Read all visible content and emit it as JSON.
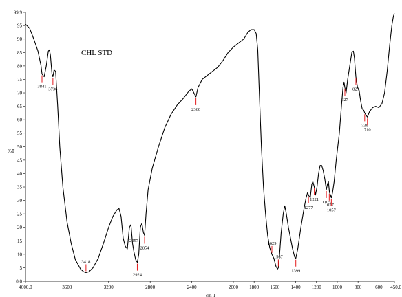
{
  "chart_data": {
    "type": "line",
    "ylabel": "%T",
    "xlabel": "cm-1",
    "annotation": "CHL  STD",
    "xlim": [
      4000.0,
      450.0
    ],
    "ylim": [
      0.0,
      99.9
    ],
    "x_ticks": [
      {
        "value": 4000,
        "label": "4000.0"
      },
      {
        "value": 3600,
        "label": "3600"
      },
      {
        "value": 3200,
        "label": "3200"
      },
      {
        "value": 2800,
        "label": "2800"
      },
      {
        "value": 2400,
        "label": "2400"
      },
      {
        "value": 2000,
        "label": "2000"
      },
      {
        "value": 1800,
        "label": "1800"
      },
      {
        "value": 1600,
        "label": "1600"
      },
      {
        "value": 1400,
        "label": "1400"
      },
      {
        "value": 1200,
        "label": "1200"
      },
      {
        "value": 1000,
        "label": "1000"
      },
      {
        "value": 800,
        "label": "800"
      },
      {
        "value": 600,
        "label": "600"
      },
      {
        "value": 450,
        "label": "450.0"
      }
    ],
    "y_ticks": [
      {
        "value": 0,
        "label": "0.0"
      },
      {
        "value": 5,
        "label": "5"
      },
      {
        "value": 10,
        "label": "10"
      },
      {
        "value": 15,
        "label": "15"
      },
      {
        "value": 20,
        "label": "20"
      },
      {
        "value": 25,
        "label": "25"
      },
      {
        "value": 30,
        "label": "30"
      },
      {
        "value": 35,
        "label": "35"
      },
      {
        "value": 40,
        "label": "40"
      },
      {
        "value": 45,
        "label": "45"
      },
      {
        "value": 50,
        "label": "50"
      },
      {
        "value": 55,
        "label": "55"
      },
      {
        "value": 60,
        "label": "60"
      },
      {
        "value": 65,
        "label": "65"
      },
      {
        "value": 70,
        "label": "70"
      },
      {
        "value": 75,
        "label": "75"
      },
      {
        "value": 80,
        "label": "80"
      },
      {
        "value": 85,
        "label": "85"
      },
      {
        "value": 90,
        "label": "90"
      },
      {
        "value": 95,
        "label": "95"
      },
      {
        "value": 99.9,
        "label": "99.9"
      }
    ],
    "series": [
      {
        "color": "#000000",
        "points": [
          [
            4000,
            95.5
          ],
          [
            3960,
            94.0
          ],
          [
            3920,
            90.0
          ],
          [
            3880,
            85.5
          ],
          [
            3850,
            80.0
          ],
          [
            3841,
            77.0
          ],
          [
            3820,
            76.0
          ],
          [
            3800,
            80.0
          ],
          [
            3780,
            85.5
          ],
          [
            3770,
            86.0
          ],
          [
            3760,
            84.0
          ],
          [
            3745,
            77.0
          ],
          [
            3736,
            76.0
          ],
          [
            3725,
            78.5
          ],
          [
            3710,
            78.0
          ],
          [
            3690,
            65.0
          ],
          [
            3670,
            50.0
          ],
          [
            3640,
            35.0
          ],
          [
            3600,
            22.0
          ],
          [
            3560,
            14.0
          ],
          [
            3520,
            8.0
          ],
          [
            3470,
            4.5
          ],
          [
            3440,
            3.5
          ],
          [
            3418,
            3.2
          ],
          [
            3390,
            3.5
          ],
          [
            3350,
            5.0
          ],
          [
            3300,
            8.5
          ],
          [
            3250,
            14.0
          ],
          [
            3200,
            20.0
          ],
          [
            3160,
            24.0
          ],
          [
            3120,
            26.5
          ],
          [
            3100,
            27.0
          ],
          [
            3080,
            24.0
          ],
          [
            3060,
            16.0
          ],
          [
            3040,
            13.0
          ],
          [
            3020,
            12.0
          ],
          [
            3000,
            20.0
          ],
          [
            2985,
            21.0
          ],
          [
            2970,
            14.0
          ],
          [
            2957,
            11.0
          ],
          [
            2940,
            8.0
          ],
          [
            2924,
            7.0
          ],
          [
            2910,
            10.0
          ],
          [
            2895,
            20.0
          ],
          [
            2880,
            21.5
          ],
          [
            2865,
            18.0
          ],
          [
            2854,
            17.0
          ],
          [
            2840,
            25.0
          ],
          [
            2820,
            34.0
          ],
          [
            2780,
            42.0
          ],
          [
            2720,
            50.0
          ],
          [
            2660,
            57.0
          ],
          [
            2600,
            62.0
          ],
          [
            2540,
            65.5
          ],
          [
            2480,
            68.0
          ],
          [
            2430,
            70.5
          ],
          [
            2400,
            71.5
          ],
          [
            2380,
            70.0
          ],
          [
            2360,
            68.5
          ],
          [
            2340,
            72.0
          ],
          [
            2300,
            75.0
          ],
          [
            2250,
            76.5
          ],
          [
            2200,
            78.0
          ],
          [
            2150,
            79.5
          ],
          [
            2100,
            82.0
          ],
          [
            2050,
            85.0
          ],
          [
            2000,
            87.0
          ],
          [
            1950,
            88.5
          ],
          [
            1900,
            90.0
          ],
          [
            1860,
            92.5
          ],
          [
            1830,
            93.5
          ],
          [
            1800,
            93.5
          ],
          [
            1780,
            92.0
          ],
          [
            1765,
            86.0
          ],
          [
            1750,
            70.0
          ],
          [
            1730,
            50.0
          ],
          [
            1710,
            35.0
          ],
          [
            1690,
            25.0
          ],
          [
            1670,
            17.0
          ],
          [
            1650,
            12.5
          ],
          [
            1629,
            10.0
          ],
          [
            1610,
            8.5
          ],
          [
            1590,
            5.5
          ],
          [
            1575,
            4.5
          ],
          [
            1567,
            5.0
          ],
          [
            1555,
            10.0
          ],
          [
            1540,
            18.0
          ],
          [
            1520,
            25.0
          ],
          [
            1505,
            28.0
          ],
          [
            1490,
            25.0
          ],
          [
            1470,
            20.0
          ],
          [
            1450,
            16.0
          ],
          [
            1430,
            12.0
          ],
          [
            1410,
            9.0
          ],
          [
            1399,
            8.5
          ],
          [
            1380,
            12.0
          ],
          [
            1350,
            20.0
          ],
          [
            1320,
            27.0
          ],
          [
            1300,
            31.0
          ],
          [
            1285,
            33.0
          ],
          [
            1277,
            32.0
          ],
          [
            1260,
            31.0
          ],
          [
            1245,
            36.0
          ],
          [
            1235,
            37.0
          ],
          [
            1221,
            35.0
          ],
          [
            1210,
            32.0
          ],
          [
            1195,
            35.0
          ],
          [
            1180,
            40.0
          ],
          [
            1165,
            43.0
          ],
          [
            1150,
            43.0
          ],
          [
            1135,
            41.0
          ],
          [
            1120,
            38.0
          ],
          [
            1105,
            34.0
          ],
          [
            1095,
            36.0
          ],
          [
            1085,
            37.0
          ],
          [
            1075,
            33.0
          ],
          [
            1065,
            32.0
          ],
          [
            1057,
            31.0
          ],
          [
            1045,
            33.0
          ],
          [
            1030,
            37.0
          ],
          [
            1010,
            45.0
          ],
          [
            995,
            50.0
          ],
          [
            980,
            55.0
          ],
          [
            960,
            65.0
          ],
          [
            945,
            72.0
          ],
          [
            935,
            74.0
          ],
          [
            927,
            72.0
          ],
          [
            915,
            70.0
          ],
          [
            900,
            75.0
          ],
          [
            880,
            80.0
          ],
          [
            860,
            85.0
          ],
          [
            845,
            85.5
          ],
          [
            835,
            83.0
          ],
          [
            821,
            76.0
          ],
          [
            805,
            72.0
          ],
          [
            790,
            71.0
          ],
          [
            775,
            67.0
          ],
          [
            760,
            64.0
          ],
          [
            745,
            63.5
          ],
          [
            736,
            62.5
          ],
          [
            720,
            61.5
          ],
          [
            710,
            61.0
          ],
          [
            690,
            63.0
          ],
          [
            660,
            64.5
          ],
          [
            630,
            65.0
          ],
          [
            600,
            64.5
          ],
          [
            570,
            66.0
          ],
          [
            545,
            70.0
          ],
          [
            520,
            78.0
          ],
          [
            495,
            88.0
          ],
          [
            475,
            95.0
          ],
          [
            460,
            98.5
          ],
          [
            450,
            99.5
          ]
        ]
      }
    ],
    "peaks": [
      {
        "x": 3841,
        "label": "3841",
        "y": 77.0
      },
      {
        "x": 3736,
        "label": "3736",
        "y": 76.0
      },
      {
        "x": 3418,
        "label": "3418",
        "y": 3.2
      },
      {
        "x": 2957,
        "label": "2957",
        "y": 11.0
      },
      {
        "x": 2924,
        "label": "2924",
        "y": 7.0
      },
      {
        "x": 2854,
        "label": "2854",
        "y": 17.0
      },
      {
        "x": 2360,
        "label": "2360",
        "y": 68.5
      },
      {
        "x": 1629,
        "label": "1629",
        "y": 10.0
      },
      {
        "x": 1567,
        "label": "1567",
        "y": 5.0
      },
      {
        "x": 1399,
        "label": "1399",
        "y": 8.5
      },
      {
        "x": 1277,
        "label": "1277",
        "y": 32.0
      },
      {
        "x": 1221,
        "label": "1221",
        "y": 35.0
      },
      {
        "x": 1105,
        "label": "1105",
        "y": 34.0
      },
      {
        "x": 1077,
        "label": "1077",
        "y": 33.0
      },
      {
        "x": 1057,
        "label": "1057",
        "y": 31.0
      },
      {
        "x": 927,
        "label": "927",
        "y": 72.0
      },
      {
        "x": 821,
        "label": "821",
        "y": 76.0
      },
      {
        "x": 736,
        "label": "736",
        "y": 62.5
      },
      {
        "x": 710,
        "label": "710",
        "y": 61.0
      }
    ],
    "peak_marker_color": "#e31a1c",
    "line_color": "#000000",
    "axis_color": "#000000"
  }
}
